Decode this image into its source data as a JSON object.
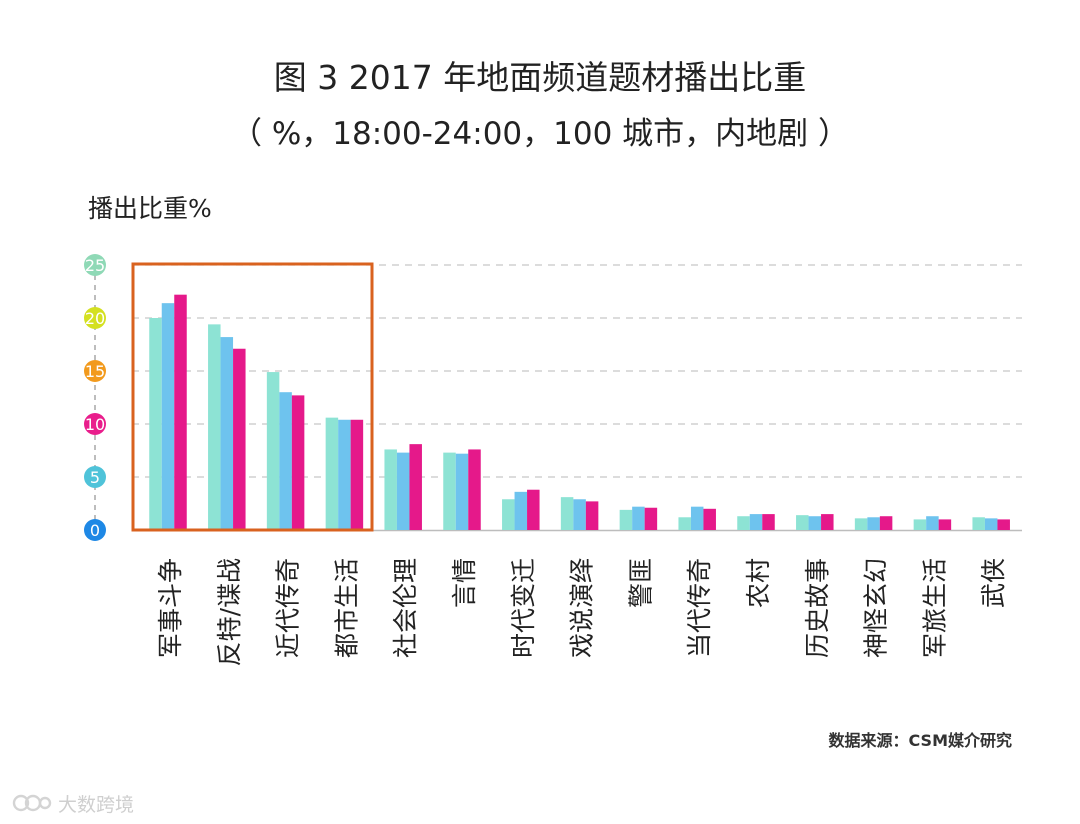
{
  "chart_data": {
    "type": "bar",
    "title": "图 3 2017 年地面频道题材播出比重",
    "subtitle": "（ %，18:00-24:00，100 城市，内地剧 ）",
    "ylabel": "播出比重%",
    "xlabel": "",
    "ylim": [
      0,
      25
    ],
    "yticks": [
      {
        "label": "0",
        "value": 0,
        "color": "#1e88e5"
      },
      {
        "label": "5",
        "value": 5,
        "color": "#4fc3d9"
      },
      {
        "label": "10",
        "value": 10,
        "color": "#e91e8c"
      },
      {
        "label": "15",
        "value": 15,
        "color": "#f29a1d"
      },
      {
        "label": "20",
        "value": 20,
        "color": "#d4e020"
      },
      {
        "label": "25",
        "value": 25,
        "color": "#8fd9b6"
      }
    ],
    "grid": true,
    "categories": [
      "军事斗争",
      "反特/谍战",
      "近代传奇",
      "都市生活",
      "社会伦理",
      "言情",
      "时代变迁",
      "戏说演绎",
      "警匪",
      "当代传奇",
      "农村",
      "历史故事",
      "神怪玄幻",
      "军旅生活",
      "武侠"
    ],
    "series": [
      {
        "name": "series-1",
        "color": "#8de3d4",
        "values": [
          20.0,
          19.4,
          14.9,
          10.6,
          7.6,
          7.3,
          2.9,
          3.1,
          1.9,
          1.2,
          1.3,
          1.4,
          1.1,
          1.0,
          1.2
        ]
      },
      {
        "name": "series-2",
        "color": "#6ec3ee",
        "values": [
          21.4,
          18.2,
          13.0,
          10.4,
          7.3,
          7.2,
          3.6,
          2.9,
          2.2,
          2.2,
          1.5,
          1.3,
          1.2,
          1.3,
          1.1
        ]
      },
      {
        "name": "series-3",
        "color": "#e5198a",
        "values": [
          22.2,
          17.1,
          12.7,
          10.4,
          8.1,
          7.6,
          3.8,
          2.7,
          2.1,
          2.0,
          1.5,
          1.5,
          1.3,
          1.0,
          1.0
        ]
      }
    ],
    "highlight": {
      "label": "highlight-box",
      "from_category": 0,
      "to_category": 3,
      "color": "#d9621f"
    }
  },
  "source": "数据来源：CSM媒介研究",
  "watermark": "大数跨境"
}
